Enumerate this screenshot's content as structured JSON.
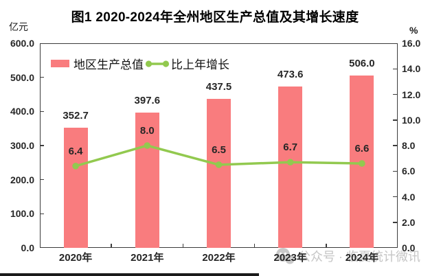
{
  "title": "图1 2020-2024年全州地区生产总值及其增长速度",
  "left_axis": {
    "unit": "亿元",
    "ticks": [
      "600.0",
      "500.0",
      "400.0",
      "300.0",
      "200.0",
      "100.0",
      "0.0"
    ]
  },
  "right_axis": {
    "unit": "%",
    "ticks": [
      "16.0",
      "14.0",
      "12.0",
      "10.0",
      "8.0",
      "6.0",
      "4.0",
      "2.0",
      "0.0"
    ]
  },
  "watermark": {
    "icon": "wechat-official-account-icon",
    "text": "公众号 · 临夏统计微讯"
  },
  "colors": {
    "bar": "#F97C7E",
    "line": "#92C94F",
    "axis": "#3B3B3B",
    "label_text": "#262626",
    "watermark_gray": "#C9C9C9"
  },
  "chart_data": {
    "type": "bar",
    "subtype": "combo bar + line, dual y-axis",
    "title": "图1 2020-2024年全州地区生产总值及其增长速度",
    "categories": [
      "2020年",
      "2021年",
      "2022年",
      "2023年",
      "2024年"
    ],
    "series": [
      {
        "name": "地区生产总值",
        "type": "bar",
        "axis": "left",
        "unit": "亿元",
        "values": [
          352.7,
          397.6,
          437.5,
          473.6,
          506.0
        ]
      },
      {
        "name": "比上年增长",
        "type": "line",
        "axis": "right",
        "unit": "%",
        "values": [
          6.4,
          8.0,
          6.5,
          6.7,
          6.6
        ]
      }
    ],
    "left_ylim": [
      0,
      600
    ],
    "right_ylim": [
      0,
      16
    ],
    "left_tick_step": 100,
    "right_tick_step": 2,
    "grid": false,
    "legend_position": "top-left",
    "data_labels": true
  }
}
